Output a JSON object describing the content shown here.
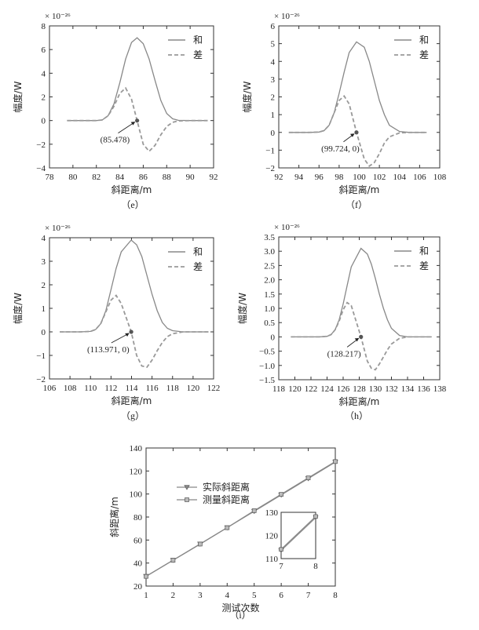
{
  "chart_data": [
    {
      "type": "line",
      "caption": "（e）",
      "xlabel": "斜距离/m",
      "ylabel": "幅度/W",
      "multiplier": "× 10⁻²⁶",
      "xlim": [
        78,
        92
      ],
      "ylim": [
        -4,
        8
      ],
      "xticks": [
        "78",
        "80",
        "82",
        "84",
        "86",
        "88",
        "90",
        "92"
      ],
      "yticks": [
        "−4",
        "−2",
        "0",
        "2",
        "4",
        "6",
        "8"
      ],
      "series": [
        {
          "name": "和",
          "style": "solid",
          "x": [
            79.5,
            80,
            81,
            82,
            82.5,
            83,
            83.5,
            84,
            84.5,
            85,
            85.478,
            86,
            86.5,
            87,
            87.5,
            88,
            88.5,
            89,
            90,
            91,
            91.5
          ],
          "y": [
            0,
            0,
            0,
            0,
            0.05,
            0.4,
            1.4,
            3.2,
            5.2,
            6.6,
            7.0,
            6.5,
            5.2,
            3.4,
            1.7,
            0.6,
            0.15,
            0.02,
            0,
            0,
            0
          ]
        },
        {
          "name": "差",
          "style": "dashed",
          "x": [
            79.5,
            80,
            81,
            82,
            82.5,
            83,
            83.5,
            84,
            84.5,
            85,
            85.478,
            86,
            86.5,
            87,
            87.5,
            88,
            88.5,
            89,
            90,
            91,
            91.5
          ],
          "y": [
            0,
            0,
            0,
            0,
            0.05,
            0.4,
            1.2,
            2.3,
            2.75,
            1.8,
            0,
            -2.0,
            -2.6,
            -2.1,
            -1.2,
            -0.5,
            -0.15,
            -0.03,
            0,
            0,
            0
          ]
        }
      ],
      "annotation": {
        "text": "(85.478)",
        "x": 85.478,
        "y": 0
      }
    },
    {
      "type": "line",
      "caption": "（f）",
      "xlabel": "斜距离/m",
      "ylabel": "幅度/W",
      "multiplier": "× 10⁻²⁶",
      "xlim": [
        92,
        108
      ],
      "ylim": [
        -2,
        6
      ],
      "xticks": [
        "92",
        "94",
        "96",
        "98",
        "100",
        "102",
        "104",
        "106",
        "108"
      ],
      "yticks": [
        "−2",
        "−1",
        "0",
        "1",
        "2",
        "3",
        "4",
        "5",
        "6"
      ],
      "series": [
        {
          "name": "和",
          "style": "solid",
          "x": [
            93,
            94,
            95,
            96,
            96.5,
            97,
            97.5,
            98,
            98.5,
            99,
            99.724,
            100.5,
            101,
            101.5,
            102,
            102.5,
            103,
            104,
            105,
            106,
            106.7
          ],
          "y": [
            0,
            0,
            0,
            0.02,
            0.1,
            0.4,
            1.1,
            2.2,
            3.4,
            4.5,
            5.1,
            4.8,
            4.0,
            2.9,
            1.8,
            1.0,
            0.4,
            0.05,
            0,
            0,
            0
          ]
        },
        {
          "name": "差",
          "style": "dashed",
          "x": [
            93,
            94,
            95,
            96,
            96.5,
            97,
            97.5,
            98,
            98.5,
            99,
            99.724,
            100.5,
            101,
            101.5,
            102,
            102.5,
            103,
            104,
            105,
            106,
            106.7
          ],
          "y": [
            0,
            0,
            0,
            0.02,
            0.1,
            0.4,
            1.1,
            1.8,
            2.05,
            1.6,
            0,
            -1.5,
            -1.9,
            -1.7,
            -1.2,
            -0.6,
            -0.25,
            -0.03,
            0,
            0,
            0
          ]
        }
      ],
      "annotation": {
        "text": "(99.724, 0)",
        "x": 99.724,
        "y": 0
      }
    },
    {
      "type": "line",
      "caption": "（g）",
      "xlabel": "斜距离/m",
      "ylabel": "幅度/W",
      "multiplier": "× 10⁻²⁶",
      "xlim": [
        106,
        122
      ],
      "ylim": [
        -2,
        4
      ],
      "xticks": [
        "106",
        "108",
        "110",
        "112",
        "114",
        "116",
        "118",
        "120",
        "122"
      ],
      "yticks": [
        "−2",
        "−1",
        "0",
        "1",
        "2",
        "3",
        "4"
      ],
      "series": [
        {
          "name": "和",
          "style": "solid",
          "x": [
            107,
            108,
            109,
            110,
            110.5,
            111,
            111.5,
            112,
            112.5,
            113,
            113.971,
            114.5,
            115,
            115.5,
            116,
            116.5,
            117,
            117.5,
            118,
            119,
            120,
            121,
            121.5
          ],
          "y": [
            0,
            0,
            0,
            0.02,
            0.1,
            0.35,
            0.9,
            1.8,
            2.7,
            3.4,
            3.9,
            3.7,
            3.2,
            2.4,
            1.6,
            0.9,
            0.4,
            0.15,
            0.05,
            0,
            0,
            0,
            0
          ]
        },
        {
          "name": "差",
          "style": "dashed",
          "x": [
            107,
            108,
            109,
            110,
            110.5,
            111,
            111.5,
            112,
            112.5,
            113,
            113.971,
            114.5,
            115,
            115.5,
            116,
            116.5,
            117,
            117.5,
            118,
            119,
            120,
            121,
            121.5
          ],
          "y": [
            0,
            0,
            0,
            0.02,
            0.1,
            0.35,
            0.85,
            1.35,
            1.55,
            1.2,
            0,
            -1.0,
            -1.45,
            -1.5,
            -1.2,
            -0.8,
            -0.45,
            -0.2,
            -0.08,
            0,
            0,
            0,
            0
          ]
        }
      ],
      "annotation": {
        "text": "(113.971, 0)",
        "x": 113.971,
        "y": 0
      }
    },
    {
      "type": "line",
      "caption": "（h）",
      "xlabel": "斜距离/m",
      "ylabel": "幅度/W",
      "multiplier": "× 10⁻²⁶",
      "xlim": [
        118,
        138
      ],
      "ylim": [
        -1.5,
        3.5
      ],
      "xticks": [
        "118",
        "120",
        "122",
        "124",
        "126",
        "128",
        "130",
        "132",
        "134",
        "136",
        "138"
      ],
      "yticks": [
        "−1.5",
        "−1.0",
        "−0.5",
        "0",
        "0.5",
        "1.0",
        "1.5",
        "2.0",
        "2.5",
        "3.0",
        "3.5"
      ],
      "series": [
        {
          "name": "和",
          "style": "solid",
          "x": [
            119.5,
            121,
            122,
            123,
            124,
            124.5,
            125,
            125.5,
            126,
            126.5,
            127,
            128.217,
            129,
            129.5,
            130,
            130.5,
            131,
            131.5,
            132,
            133,
            134,
            135,
            136,
            137
          ],
          "y": [
            0,
            0,
            0,
            0,
            0.02,
            0.08,
            0.25,
            0.6,
            1.15,
            1.8,
            2.45,
            3.1,
            2.9,
            2.55,
            2.05,
            1.5,
            1.0,
            0.6,
            0.3,
            0.05,
            0,
            0,
            0,
            0
          ]
        },
        {
          "name": "差",
          "style": "dashed",
          "x": [
            119.5,
            121,
            122,
            123,
            124,
            124.5,
            125,
            125.5,
            126,
            126.5,
            127,
            128.217,
            129,
            129.5,
            130,
            130.5,
            131,
            131.5,
            132,
            133,
            134,
            135,
            136,
            137
          ],
          "y": [
            0,
            0,
            0,
            0,
            0.02,
            0.08,
            0.25,
            0.55,
            0.95,
            1.2,
            1.1,
            0,
            -0.85,
            -1.1,
            -1.15,
            -0.95,
            -0.7,
            -0.45,
            -0.25,
            -0.05,
            0,
            0,
            0,
            0
          ]
        }
      ],
      "annotation": {
        "text": "(128.217)",
        "x": 128.217,
        "y": 0
      }
    },
    {
      "type": "line",
      "caption": "（i）",
      "xlabel": "测试次数",
      "ylabel": "斜距离/m",
      "xlim": [
        1,
        8
      ],
      "ylim": [
        20,
        140
      ],
      "xticks": [
        "1",
        "2",
        "3",
        "4",
        "5",
        "6",
        "7",
        "8"
      ],
      "yticks": [
        "20",
        "40",
        "60",
        "80",
        "100",
        "120",
        "140"
      ],
      "series": [
        {
          "name": "实际斜距离",
          "marker": "triangle",
          "x": [
            1,
            2,
            3,
            4,
            5,
            6,
            7,
            8
          ],
          "y": [
            28.5,
            42.5,
            56.6,
            70.8,
            85.0,
            99.2,
            113.5,
            127.7
          ]
        },
        {
          "name": "测量斜距离",
          "marker": "square",
          "x": [
            1,
            2,
            3,
            4,
            5,
            6,
            7,
            8
          ],
          "y": [
            28.4,
            42.4,
            56.5,
            70.7,
            85.5,
            99.7,
            114.0,
            128.2
          ]
        }
      ],
      "inset": {
        "xlim": [
          7,
          8
        ],
        "ylim": [
          110,
          130
        ],
        "xticks": [
          "7",
          "8"
        ],
        "yticks": [
          "110",
          "120",
          "130"
        ]
      }
    }
  ]
}
